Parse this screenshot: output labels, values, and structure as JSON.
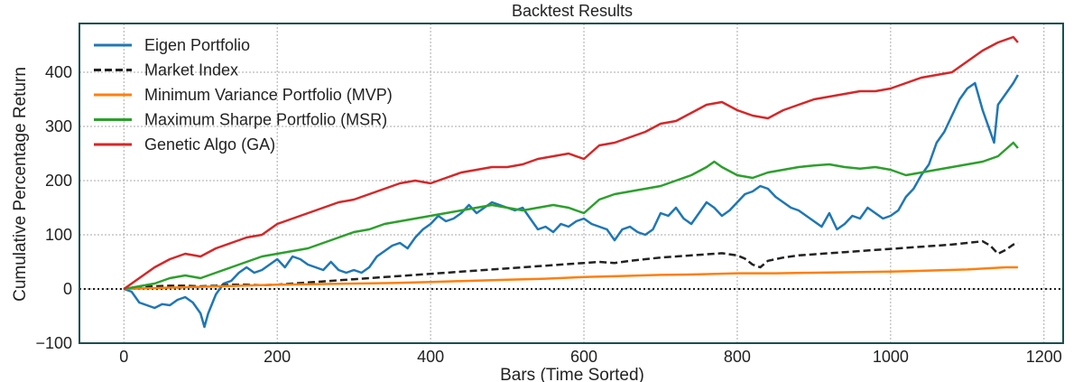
{
  "chart_data": {
    "type": "line",
    "title": "Backtest Results",
    "xlabel": "Bars (Time Sorted)",
    "ylabel": "Cumulative Percentage Return",
    "xlim": [
      -58,
      1225
    ],
    "ylim": [
      -100,
      490
    ],
    "xticks": [
      0,
      200,
      400,
      600,
      800,
      1000,
      1200
    ],
    "xtick_labels": [
      "0",
      "200",
      "400",
      "600",
      "800",
      "1000",
      "1200"
    ],
    "yticks": [
      -100,
      0,
      100,
      200,
      300,
      400
    ],
    "ytick_labels": [
      "−100",
      "0",
      "100",
      "200",
      "300",
      "400"
    ],
    "grid": true,
    "legend_position": "top-left",
    "zero_line": 0,
    "series": [
      {
        "name": "Eigen Portfolio",
        "color": "#1f77b4",
        "dashed": false,
        "x": [
          0,
          10,
          20,
          30,
          40,
          50,
          60,
          70,
          80,
          90,
          100,
          105,
          110,
          120,
          130,
          140,
          150,
          160,
          170,
          180,
          190,
          200,
          210,
          220,
          230,
          240,
          250,
          260,
          270,
          280,
          290,
          300,
          310,
          320,
          330,
          340,
          350,
          360,
          370,
          380,
          390,
          400,
          410,
          420,
          430,
          440,
          450,
          460,
          470,
          480,
          490,
          500,
          510,
          520,
          530,
          540,
          550,
          560,
          570,
          580,
          590,
          600,
          610,
          620,
          630,
          640,
          650,
          660,
          670,
          680,
          690,
          700,
          710,
          720,
          730,
          740,
          750,
          760,
          770,
          780,
          790,
          800,
          810,
          820,
          830,
          840,
          850,
          860,
          870,
          880,
          890,
          900,
          910,
          920,
          930,
          940,
          950,
          960,
          970,
          980,
          990,
          1000,
          1010,
          1020,
          1030,
          1040,
          1050,
          1060,
          1070,
          1080,
          1090,
          1100,
          1110,
          1120,
          1130,
          1135,
          1140,
          1150,
          1160,
          1166
        ],
        "y": [
          0,
          -5,
          -25,
          -30,
          -35,
          -28,
          -30,
          -20,
          -15,
          -25,
          -45,
          -70,
          -45,
          -10,
          10,
          15,
          30,
          40,
          30,
          35,
          45,
          55,
          40,
          60,
          55,
          45,
          40,
          35,
          50,
          35,
          30,
          35,
          30,
          40,
          60,
          70,
          80,
          85,
          75,
          95,
          110,
          120,
          135,
          125,
          130,
          140,
          155,
          140,
          150,
          160,
          155,
          150,
          145,
          150,
          130,
          110,
          115,
          105,
          120,
          115,
          125,
          130,
          120,
          115,
          110,
          90,
          110,
          115,
          105,
          100,
          110,
          140,
          135,
          150,
          130,
          120,
          140,
          160,
          150,
          135,
          145,
          160,
          175,
          180,
          190,
          185,
          170,
          160,
          150,
          145,
          135,
          125,
          115,
          140,
          110,
          120,
          135,
          130,
          150,
          140,
          130,
          135,
          145,
          170,
          185,
          210,
          230,
          270,
          290,
          320,
          350,
          370,
          380,
          330,
          290,
          270,
          340,
          360,
          380,
          395
        ]
      },
      {
        "name": "Market Index",
        "color": "#222222",
        "dashed": true,
        "x": [
          0,
          20,
          40,
          60,
          80,
          100,
          120,
          140,
          160,
          180,
          200,
          220,
          240,
          260,
          280,
          300,
          320,
          340,
          360,
          380,
          400,
          420,
          440,
          460,
          480,
          500,
          520,
          540,
          560,
          580,
          600,
          620,
          640,
          660,
          680,
          700,
          720,
          740,
          760,
          780,
          800,
          810,
          820,
          830,
          840,
          860,
          880,
          900,
          920,
          940,
          960,
          980,
          1000,
          1020,
          1040,
          1060,
          1080,
          1100,
          1120,
          1130,
          1140,
          1150,
          1160,
          1166
        ],
        "y": [
          0,
          3,
          5,
          6,
          6,
          5,
          6,
          8,
          8,
          7,
          8,
          10,
          12,
          14,
          16,
          18,
          20,
          22,
          24,
          26,
          28,
          30,
          32,
          34,
          36,
          38,
          40,
          42,
          44,
          46,
          48,
          50,
          48,
          52,
          55,
          58,
          60,
          62,
          64,
          66,
          62,
          56,
          45,
          40,
          52,
          58,
          62,
          64,
          66,
          68,
          70,
          72,
          74,
          76,
          78,
          80,
          82,
          85,
          88,
          80,
          65,
          72,
          82,
          85
        ]
      },
      {
        "name": "Minimum Variance Portfolio (MVP)",
        "color": "#ff7f0e",
        "dashed": false,
        "x": [
          0,
          50,
          100,
          150,
          200,
          250,
          300,
          350,
          400,
          450,
          500,
          550,
          600,
          650,
          700,
          750,
          800,
          850,
          900,
          950,
          1000,
          1050,
          1100,
          1150,
          1166
        ],
        "y": [
          0,
          2,
          4,
          6,
          8,
          9,
          10,
          11,
          13,
          15,
          17,
          19,
          22,
          24,
          26,
          27,
          29,
          29,
          30,
          31,
          32,
          34,
          36,
          40,
          40
        ]
      },
      {
        "name": "Maximum Sharpe Portfolio (MSR)",
        "color": "#2ca02c",
        "dashed": false,
        "x": [
          0,
          20,
          40,
          60,
          80,
          100,
          120,
          140,
          160,
          180,
          200,
          220,
          240,
          260,
          280,
          300,
          320,
          340,
          360,
          380,
          400,
          420,
          440,
          460,
          480,
          500,
          520,
          540,
          560,
          580,
          600,
          620,
          640,
          660,
          680,
          700,
          720,
          740,
          760,
          770,
          780,
          800,
          820,
          840,
          860,
          880,
          900,
          920,
          940,
          960,
          980,
          1000,
          1020,
          1040,
          1060,
          1080,
          1100,
          1120,
          1140,
          1160,
          1166
        ],
        "y": [
          0,
          5,
          10,
          20,
          25,
          20,
          30,
          40,
          50,
          60,
          65,
          70,
          75,
          85,
          95,
          105,
          110,
          120,
          125,
          130,
          135,
          140,
          145,
          150,
          155,
          150,
          145,
          150,
          155,
          150,
          140,
          165,
          175,
          180,
          185,
          190,
          200,
          210,
          225,
          235,
          225,
          210,
          205,
          215,
          220,
          225,
          228,
          230,
          225,
          222,
          225,
          220,
          210,
          215,
          220,
          225,
          230,
          235,
          245,
          270,
          260
        ]
      },
      {
        "name": "Genetic Algo (GA)",
        "color": "#d62728",
        "dashed": false,
        "x": [
          0,
          20,
          40,
          60,
          80,
          100,
          120,
          140,
          160,
          180,
          200,
          220,
          240,
          260,
          280,
          300,
          320,
          340,
          360,
          380,
          400,
          420,
          440,
          460,
          480,
          500,
          520,
          540,
          560,
          580,
          600,
          620,
          640,
          660,
          680,
          700,
          720,
          740,
          760,
          780,
          800,
          820,
          840,
          860,
          880,
          900,
          920,
          940,
          960,
          980,
          1000,
          1020,
          1040,
          1060,
          1080,
          1100,
          1120,
          1140,
          1160,
          1166
        ],
        "y": [
          0,
          20,
          40,
          55,
          65,
          60,
          75,
          85,
          95,
          100,
          120,
          130,
          140,
          150,
          160,
          165,
          175,
          185,
          195,
          200,
          195,
          205,
          215,
          220,
          225,
          225,
          230,
          240,
          245,
          250,
          240,
          265,
          270,
          280,
          290,
          305,
          310,
          325,
          340,
          345,
          330,
          320,
          315,
          330,
          340,
          350,
          355,
          360,
          365,
          365,
          370,
          380,
          390,
          395,
          400,
          420,
          440,
          455,
          465,
          455
        ]
      }
    ]
  }
}
